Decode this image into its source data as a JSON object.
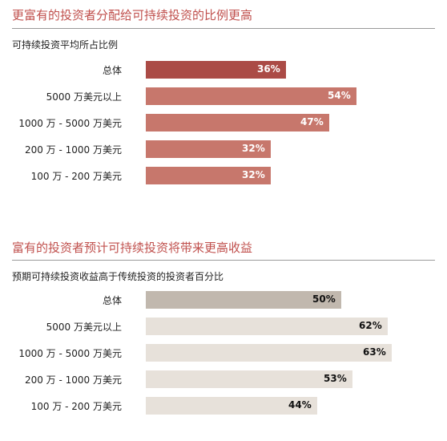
{
  "chart_data": [
    {
      "type": "bar",
      "orientation": "horizontal",
      "title": "更富有的投资者分配给可持续投资的比例更高",
      "subtitle": "可持续投资平均所占比例",
      "categories": [
        "总体",
        "5000 万美元以上",
        "1000 万 - 5000 万美元",
        "200 万 - 1000 万美元",
        "100 万 - 200 万美元"
      ],
      "values": [
        36,
        54,
        47,
        32,
        32
      ],
      "value_labels": [
        "36%",
        "54%",
        "47%",
        "32%",
        "32%"
      ],
      "value_unit": "%",
      "colors": {
        "total": "#ab4b46",
        "other": "#c7776c",
        "value_text": "#ffffff",
        "title": "#c0504d"
      },
      "grid": false
    },
    {
      "type": "bar",
      "orientation": "horizontal",
      "title": "富有的投资者预计可持续投资将带来更高收益",
      "subtitle": "预期可持续投资收益高于传统投资的投资者百分比",
      "categories": [
        "总体",
        "5000 万美元以上",
        "1000 万 - 5000 万美元",
        "200 万 - 1000 万美元",
        "100 万 - 200 万美元"
      ],
      "values": [
        50,
        62,
        63,
        53,
        44
      ],
      "value_labels": [
        "50%",
        "62%",
        "63%",
        "53%",
        "44%"
      ],
      "value_unit": "%",
      "colors": {
        "total": "#c1b8ae",
        "other": "#e7e1da",
        "value_text": "#111111",
        "title": "#c0504d"
      },
      "grid": false
    }
  ]
}
